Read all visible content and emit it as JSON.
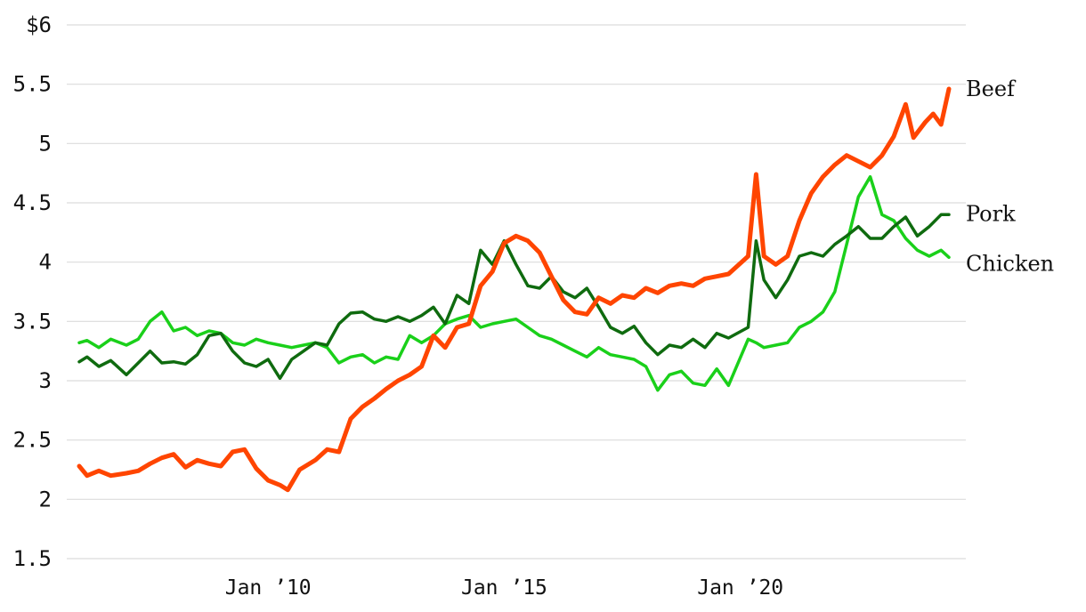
{
  "chart_data": {
    "type": "line",
    "title": "",
    "xlabel": "",
    "ylabel": "",
    "ylim": [
      1.5,
      6
    ],
    "yticks": [
      {
        "value": 6,
        "label": "$6"
      },
      {
        "value": 5.5,
        "label": "5.5"
      },
      {
        "value": 5,
        "label": "5"
      },
      {
        "value": 4.5,
        "label": "4.5"
      },
      {
        "value": 4,
        "label": "4"
      },
      {
        "value": 3.5,
        "label": "3.5"
      },
      {
        "value": 3,
        "label": "3"
      },
      {
        "value": 2.5,
        "label": "2.5"
      },
      {
        "value": 2,
        "label": "2"
      },
      {
        "value": 1.5,
        "label": "1.5"
      }
    ],
    "xlim": [
      "2006-01",
      "2024-06"
    ],
    "xticks": [
      {
        "value": "2010-01",
        "label": "Jan ’10"
      },
      {
        "value": "2015-01",
        "label": "Jan ’15"
      },
      {
        "value": "2020-01",
        "label": "Jan ’20"
      }
    ],
    "grid": true,
    "series": [
      {
        "name": "Beef",
        "color": "#ff4500",
        "points": [
          [
            "2006-01",
            2.28
          ],
          [
            "2006-03",
            2.2
          ],
          [
            "2006-06",
            2.24
          ],
          [
            "2006-09",
            2.2
          ],
          [
            "2007-01",
            2.22
          ],
          [
            "2007-04",
            2.24
          ],
          [
            "2007-07",
            2.3
          ],
          [
            "2007-10",
            2.35
          ],
          [
            "2008-01",
            2.38
          ],
          [
            "2008-04",
            2.27
          ],
          [
            "2008-07",
            2.33
          ],
          [
            "2008-10",
            2.3
          ],
          [
            "2009-01",
            2.28
          ],
          [
            "2009-04",
            2.4
          ],
          [
            "2009-07",
            2.42
          ],
          [
            "2009-10",
            2.26
          ],
          [
            "2010-01",
            2.16
          ],
          [
            "2010-04",
            2.12
          ],
          [
            "2010-06",
            2.08
          ],
          [
            "2010-09",
            2.25
          ],
          [
            "2011-01",
            2.33
          ],
          [
            "2011-04",
            2.42
          ],
          [
            "2011-07",
            2.4
          ],
          [
            "2011-10",
            2.68
          ],
          [
            "2012-01",
            2.78
          ],
          [
            "2012-04",
            2.85
          ],
          [
            "2012-07",
            2.93
          ],
          [
            "2012-10",
            3.0
          ],
          [
            "2013-01",
            3.05
          ],
          [
            "2013-04",
            3.12
          ],
          [
            "2013-07",
            3.38
          ],
          [
            "2013-10",
            3.28
          ],
          [
            "2014-01",
            3.45
          ],
          [
            "2014-04",
            3.48
          ],
          [
            "2014-07",
            3.8
          ],
          [
            "2014-10",
            3.92
          ],
          [
            "2015-01",
            4.16
          ],
          [
            "2015-04",
            4.22
          ],
          [
            "2015-07",
            4.18
          ],
          [
            "2015-10",
            4.08
          ],
          [
            "2016-01",
            3.88
          ],
          [
            "2016-04",
            3.68
          ],
          [
            "2016-07",
            3.58
          ],
          [
            "2016-10",
            3.56
          ],
          [
            "2017-01",
            3.7
          ],
          [
            "2017-04",
            3.65
          ],
          [
            "2017-07",
            3.72
          ],
          [
            "2017-10",
            3.7
          ],
          [
            "2018-01",
            3.78
          ],
          [
            "2018-04",
            3.74
          ],
          [
            "2018-07",
            3.8
          ],
          [
            "2018-10",
            3.82
          ],
          [
            "2019-01",
            3.8
          ],
          [
            "2019-04",
            3.86
          ],
          [
            "2019-07",
            3.88
          ],
          [
            "2019-10",
            3.9
          ],
          [
            "2020-03",
            4.05
          ],
          [
            "2020-05",
            4.74
          ],
          [
            "2020-07",
            4.05
          ],
          [
            "2020-10",
            3.98
          ],
          [
            "2021-01",
            4.05
          ],
          [
            "2021-04",
            4.35
          ],
          [
            "2021-07",
            4.58
          ],
          [
            "2021-10",
            4.72
          ],
          [
            "2022-01",
            4.82
          ],
          [
            "2022-04",
            4.9
          ],
          [
            "2022-07",
            4.85
          ],
          [
            "2022-10",
            4.8
          ],
          [
            "2023-01",
            4.9
          ],
          [
            "2023-04",
            5.06
          ],
          [
            "2023-07",
            5.33
          ],
          [
            "2023-09",
            5.05
          ],
          [
            "2023-12",
            5.18
          ],
          [
            "2024-02",
            5.25
          ],
          [
            "2024-04",
            5.16
          ],
          [
            "2024-06",
            5.46
          ]
        ]
      },
      {
        "name": "Pork",
        "color": "#0f6b0f",
        "points": [
          [
            "2006-01",
            3.16
          ],
          [
            "2006-03",
            3.2
          ],
          [
            "2006-06",
            3.12
          ],
          [
            "2006-09",
            3.17
          ],
          [
            "2007-01",
            3.05
          ],
          [
            "2007-04",
            3.15
          ],
          [
            "2007-07",
            3.25
          ],
          [
            "2007-10",
            3.15
          ],
          [
            "2008-01",
            3.16
          ],
          [
            "2008-04",
            3.14
          ],
          [
            "2008-07",
            3.22
          ],
          [
            "2008-10",
            3.38
          ],
          [
            "2009-01",
            3.4
          ],
          [
            "2009-04",
            3.25
          ],
          [
            "2009-07",
            3.15
          ],
          [
            "2009-10",
            3.12
          ],
          [
            "2010-01",
            3.18
          ],
          [
            "2010-04",
            3.02
          ],
          [
            "2010-07",
            3.18
          ],
          [
            "2010-10",
            3.25
          ],
          [
            "2011-01",
            3.32
          ],
          [
            "2011-04",
            3.3
          ],
          [
            "2011-07",
            3.48
          ],
          [
            "2011-10",
            3.57
          ],
          [
            "2012-01",
            3.58
          ],
          [
            "2012-04",
            3.52
          ],
          [
            "2012-07",
            3.5
          ],
          [
            "2012-10",
            3.54
          ],
          [
            "2013-01",
            3.5
          ],
          [
            "2013-04",
            3.55
          ],
          [
            "2013-07",
            3.62
          ],
          [
            "2013-10",
            3.48
          ],
          [
            "2014-01",
            3.72
          ],
          [
            "2014-04",
            3.65
          ],
          [
            "2014-07",
            4.1
          ],
          [
            "2014-10",
            3.98
          ],
          [
            "2015-01",
            4.18
          ],
          [
            "2015-04",
            3.98
          ],
          [
            "2015-07",
            3.8
          ],
          [
            "2015-10",
            3.78
          ],
          [
            "2016-01",
            3.88
          ],
          [
            "2016-04",
            3.75
          ],
          [
            "2016-07",
            3.7
          ],
          [
            "2016-10",
            3.78
          ],
          [
            "2017-01",
            3.62
          ],
          [
            "2017-04",
            3.45
          ],
          [
            "2017-07",
            3.4
          ],
          [
            "2017-10",
            3.46
          ],
          [
            "2018-01",
            3.32
          ],
          [
            "2018-04",
            3.22
          ],
          [
            "2018-07",
            3.3
          ],
          [
            "2018-10",
            3.28
          ],
          [
            "2019-01",
            3.35
          ],
          [
            "2019-04",
            3.28
          ],
          [
            "2019-07",
            3.4
          ],
          [
            "2019-10",
            3.36
          ],
          [
            "2020-03",
            3.45
          ],
          [
            "2020-05",
            4.18
          ],
          [
            "2020-07",
            3.85
          ],
          [
            "2020-10",
            3.7
          ],
          [
            "2021-01",
            3.85
          ],
          [
            "2021-04",
            4.05
          ],
          [
            "2021-07",
            4.08
          ],
          [
            "2021-10",
            4.05
          ],
          [
            "2022-01",
            4.15
          ],
          [
            "2022-04",
            4.22
          ],
          [
            "2022-07",
            4.3
          ],
          [
            "2022-10",
            4.2
          ],
          [
            "2023-01",
            4.2
          ],
          [
            "2023-04",
            4.3
          ],
          [
            "2023-07",
            4.38
          ],
          [
            "2023-10",
            4.22
          ],
          [
            "2024-01",
            4.3
          ],
          [
            "2024-04",
            4.4
          ],
          [
            "2024-06",
            4.4
          ]
        ]
      },
      {
        "name": "Chicken",
        "color": "#1ad01a",
        "points": [
          [
            "2006-01",
            3.32
          ],
          [
            "2006-03",
            3.34
          ],
          [
            "2006-06",
            3.28
          ],
          [
            "2006-09",
            3.35
          ],
          [
            "2007-01",
            3.3
          ],
          [
            "2007-04",
            3.35
          ],
          [
            "2007-07",
            3.5
          ],
          [
            "2007-10",
            3.58
          ],
          [
            "2008-01",
            3.42
          ],
          [
            "2008-04",
            3.45
          ],
          [
            "2008-07",
            3.38
          ],
          [
            "2008-10",
            3.42
          ],
          [
            "2009-01",
            3.4
          ],
          [
            "2009-04",
            3.32
          ],
          [
            "2009-07",
            3.3
          ],
          [
            "2009-10",
            3.35
          ],
          [
            "2010-01",
            3.32
          ],
          [
            "2010-04",
            3.3
          ],
          [
            "2010-07",
            3.28
          ],
          [
            "2010-10",
            3.3
          ],
          [
            "2011-01",
            3.32
          ],
          [
            "2011-04",
            3.28
          ],
          [
            "2011-07",
            3.15
          ],
          [
            "2011-10",
            3.2
          ],
          [
            "2012-01",
            3.22
          ],
          [
            "2012-04",
            3.15
          ],
          [
            "2012-07",
            3.2
          ],
          [
            "2012-10",
            3.18
          ],
          [
            "2013-01",
            3.38
          ],
          [
            "2013-04",
            3.32
          ],
          [
            "2013-07",
            3.38
          ],
          [
            "2013-10",
            3.48
          ],
          [
            "2014-01",
            3.52
          ],
          [
            "2014-04",
            3.55
          ],
          [
            "2014-07",
            3.45
          ],
          [
            "2014-10",
            3.48
          ],
          [
            "2015-01",
            3.5
          ],
          [
            "2015-04",
            3.52
          ],
          [
            "2015-07",
            3.45
          ],
          [
            "2015-10",
            3.38
          ],
          [
            "2016-01",
            3.35
          ],
          [
            "2016-04",
            3.3
          ],
          [
            "2016-07",
            3.25
          ],
          [
            "2016-10",
            3.2
          ],
          [
            "2017-01",
            3.28
          ],
          [
            "2017-04",
            3.22
          ],
          [
            "2017-07",
            3.2
          ],
          [
            "2017-10",
            3.18
          ],
          [
            "2018-01",
            3.12
          ],
          [
            "2018-04",
            2.92
          ],
          [
            "2018-07",
            3.05
          ],
          [
            "2018-10",
            3.08
          ],
          [
            "2019-01",
            2.98
          ],
          [
            "2019-04",
            2.96
          ],
          [
            "2019-07",
            3.1
          ],
          [
            "2019-10",
            2.96
          ],
          [
            "2020-03",
            3.35
          ],
          [
            "2020-05",
            3.32
          ],
          [
            "2020-07",
            3.28
          ],
          [
            "2020-10",
            3.3
          ],
          [
            "2021-01",
            3.32
          ],
          [
            "2021-04",
            3.45
          ],
          [
            "2021-07",
            3.5
          ],
          [
            "2021-10",
            3.58
          ],
          [
            "2022-01",
            3.75
          ],
          [
            "2022-04",
            4.15
          ],
          [
            "2022-07",
            4.55
          ],
          [
            "2022-10",
            4.72
          ],
          [
            "2023-01",
            4.4
          ],
          [
            "2023-04",
            4.35
          ],
          [
            "2023-07",
            4.2
          ],
          [
            "2023-10",
            4.1
          ],
          [
            "2024-01",
            4.05
          ],
          [
            "2024-04",
            4.1
          ],
          [
            "2024-06",
            4.04
          ]
        ]
      }
    ]
  }
}
